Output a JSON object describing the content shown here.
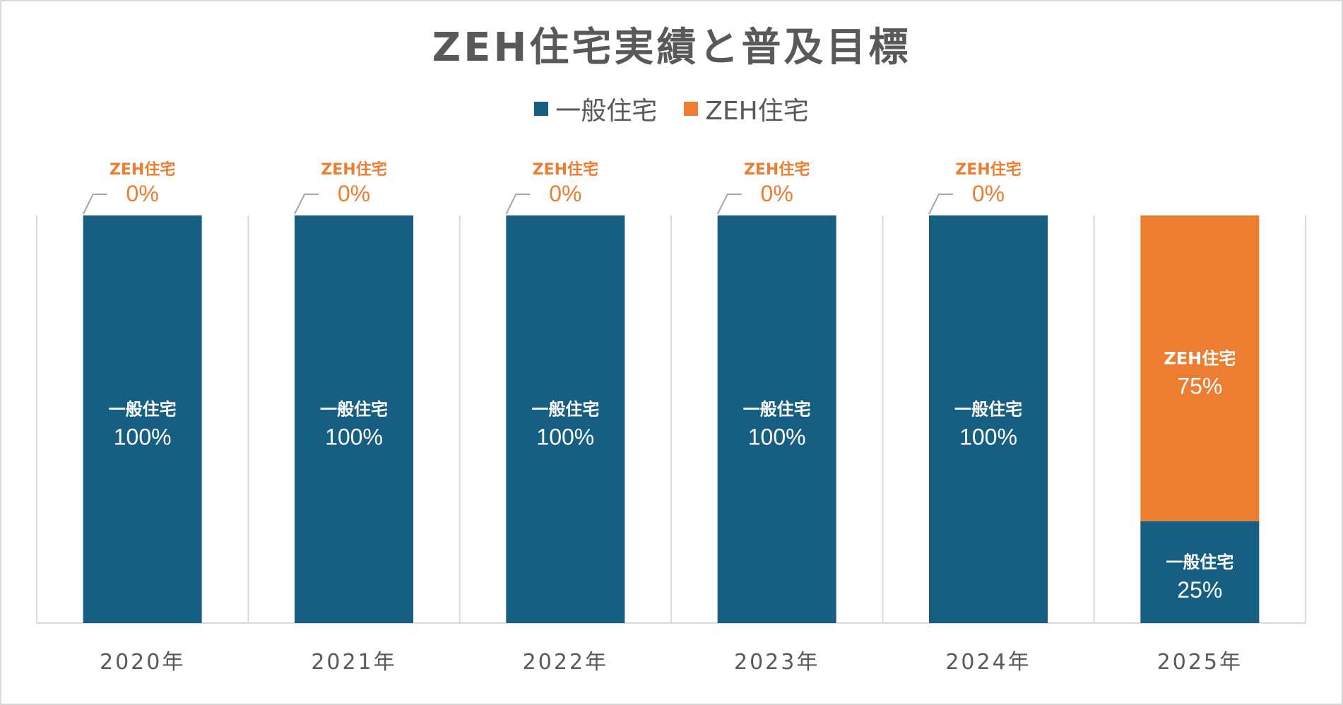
{
  "chart_data": {
    "type": "bar",
    "stacked": true,
    "title": "ZEH住宅実績と普及目標",
    "categories": [
      "2020年",
      "2021年",
      "2022年",
      "2023年",
      "2024年",
      "2025年"
    ],
    "series": [
      {
        "name": "一般住宅",
        "values": [
          100,
          100,
          100,
          100,
          100,
          25
        ],
        "color": "#175f82"
      },
      {
        "name": "ZEH住宅",
        "values": [
          0,
          0,
          0,
          0,
          0,
          75
        ],
        "color": "#ed7d31"
      }
    ],
    "data_labels": [
      [
        "100%",
        "100%",
        "100%",
        "100%",
        "100%",
        "25%"
      ],
      [
        "0%",
        "0%",
        "0%",
        "0%",
        "0%",
        "75%"
      ]
    ],
    "ylim": [
      0,
      100
    ],
    "grid": false,
    "legend_position": "top"
  },
  "colors": {
    "text": "#595959",
    "axis": "#d9d9d9"
  }
}
